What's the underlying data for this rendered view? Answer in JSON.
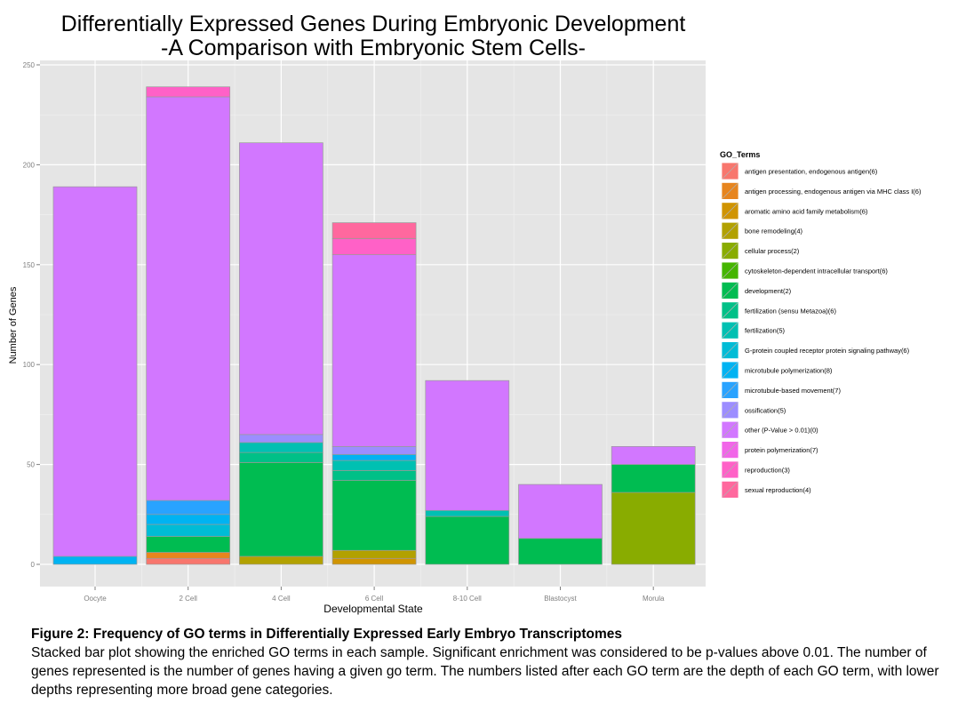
{
  "chart_data": {
    "type": "bar",
    "stacked": true,
    "title_line1": "Differentially Expressed Genes During Embryonic Development",
    "title_line2": "-A Comparison with Embryonic Stem Cells-",
    "xlabel": "Developmental State",
    "ylabel": "Number of Genes",
    "ylim": [
      0,
      250
    ],
    "yticks": [
      0,
      50,
      100,
      150,
      200,
      250
    ],
    "categories": [
      "Oocyte",
      "2 Cell",
      "4 Cell",
      "6 Cell",
      "8-10 Cell",
      "Blastocyst",
      "Morula"
    ],
    "legend_title": "GO_Terms",
    "legend_position": "right",
    "grid": true,
    "panel_color": "#e5e5e5",
    "series": [
      {
        "name": "antigen presentation, endogenous antigen(6)",
        "color": "#F8766D",
        "values": [
          0,
          3,
          0,
          0,
          0,
          0,
          0
        ]
      },
      {
        "name": "antigen processing, endogenous antigen via MHC class I(6)",
        "color": "#E7851E",
        "values": [
          0,
          3,
          0,
          0,
          0,
          0,
          0
        ]
      },
      {
        "name": "aromatic amino acid family metabolism(6)",
        "color": "#D09400",
        "values": [
          0,
          0,
          0,
          3,
          0,
          0,
          0
        ]
      },
      {
        "name": "bone remodeling(4)",
        "color": "#B2A100",
        "values": [
          0,
          0,
          4,
          4,
          0,
          0,
          0
        ]
      },
      {
        "name": "cellular process(2)",
        "color": "#89AC00",
        "values": [
          0,
          0,
          0,
          0,
          0,
          0,
          36
        ]
      },
      {
        "name": "cytoskeleton-dependent intracellular transport(6)",
        "color": "#45B500",
        "values": [
          0,
          0,
          0,
          0,
          0,
          0,
          0
        ]
      },
      {
        "name": "development(2)",
        "color": "#00BC51",
        "values": [
          0,
          8,
          47,
          35,
          24,
          13,
          14
        ]
      },
      {
        "name": "fertilization (sensu Metazoa)(6)",
        "color": "#00C087",
        "values": [
          0,
          0,
          5,
          5,
          0,
          0,
          0
        ]
      },
      {
        "name": "fertilization(5)",
        "color": "#00C0B2",
        "values": [
          0,
          0,
          5,
          5,
          3,
          0,
          0
        ]
      },
      {
        "name": "G-protein coupled receptor protein signaling pathway(6)",
        "color": "#00BCD6",
        "values": [
          0,
          6,
          0,
          0,
          0,
          0,
          0
        ]
      },
      {
        "name": "microtubule polymerization(8)",
        "color": "#00B3F2",
        "values": [
          4,
          5,
          0,
          3,
          0,
          0,
          0
        ]
      },
      {
        "name": "microtubule-based movement(7)",
        "color": "#29A3FF",
        "values": [
          0,
          7,
          0,
          0,
          0,
          0,
          0
        ]
      },
      {
        "name": "ossification(5)",
        "color": "#9C8DFF",
        "values": [
          0,
          0,
          4,
          4,
          0,
          0,
          0
        ]
      },
      {
        "name": "other (P-Value > 0.01)(0)",
        "color": "#D277FF",
        "values": [
          185,
          202,
          146,
          96,
          65,
          27,
          9
        ]
      },
      {
        "name": "protein polymerization(7)",
        "color": "#F166E8",
        "values": [
          0,
          0,
          0,
          0,
          0,
          0,
          0
        ]
      },
      {
        "name": "reproduction(3)",
        "color": "#FF61C7",
        "values": [
          0,
          5,
          0,
          8,
          0,
          0,
          0
        ]
      },
      {
        "name": "sexual reproduction(4)",
        "color": "#FF689E",
        "values": [
          0,
          0,
          0,
          8,
          0,
          0,
          0
        ]
      }
    ]
  },
  "caption": {
    "title": "Figure 2: Frequency of GO terms in Differentially Expressed Early Embryo Transcriptomes",
    "body": "Stacked bar plot showing the enriched GO terms in each sample. Significant enrichment was considered to be p-values above 0.01. The number of genes represented is the number of genes having a given go term. The numbers listed after each GO term are the depth of each GO term, with lower depths representing more broad gene categories."
  }
}
